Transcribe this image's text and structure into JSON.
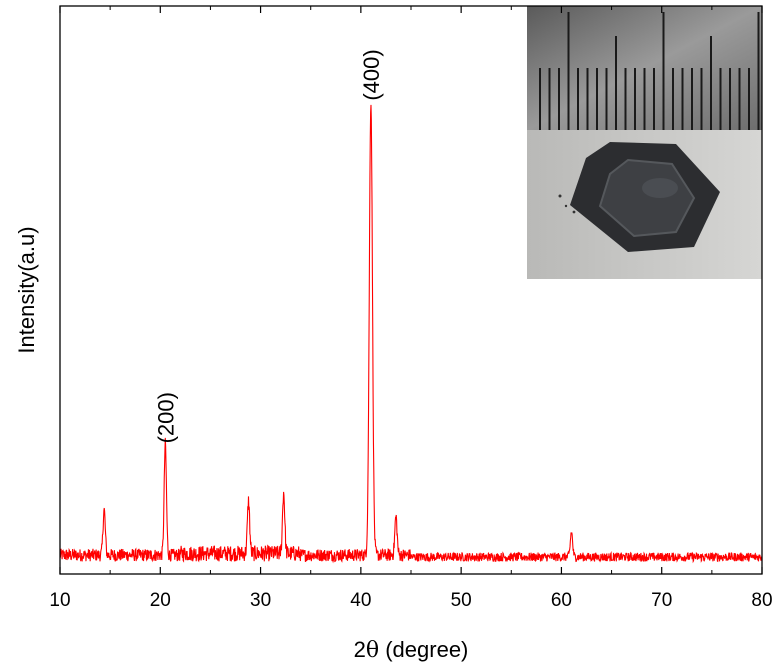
{
  "chart_data": {
    "type": "line",
    "xlabel_prefix": "2",
    "xlabel_symbol": "θ",
    "xlabel_suffix": " (degree)",
    "ylabel": "Intensity(a.u)",
    "xlim": [
      10,
      80
    ],
    "ylim": [
      0,
      100
    ],
    "x_ticks": [
      10,
      20,
      30,
      40,
      50,
      60,
      70,
      80
    ],
    "y_ticks_shown": false,
    "grid": false,
    "series": [
      {
        "color": "#ff0000",
        "baseline": 1.0,
        "noise": 2.8,
        "peaks": [
          {
            "x": 14.4,
            "y": 10.0
          },
          {
            "x": 20.5,
            "y": 24.5
          },
          {
            "x": 28.8,
            "y": 11.5
          },
          {
            "x": 32.3,
            "y": 13.5
          },
          {
            "x": 41.0,
            "y": 100.0
          },
          {
            "x": 43.5,
            "y": 8.5
          },
          {
            "x": 61.0,
            "y": 5.5
          }
        ]
      }
    ],
    "annotations": [
      {
        "text": "(200)",
        "x": 20.5,
        "y": 27.0
      },
      {
        "text": "(400)",
        "x": 41.0,
        "y": 102.5
      }
    ],
    "inset": {
      "content": "photo of a dark hexagonal crystal sample below a metal ruler",
      "position": "top-right"
    }
  }
}
